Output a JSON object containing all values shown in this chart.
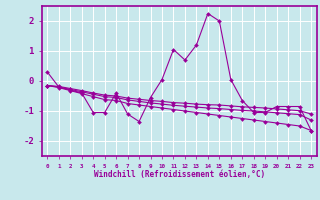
{
  "xlabel": "Windchill (Refroidissement éolien,°C)",
  "x": [
    0,
    1,
    2,
    3,
    4,
    5,
    6,
    7,
    8,
    9,
    10,
    11,
    12,
    13,
    14,
    15,
    16,
    17,
    18,
    19,
    20,
    21,
    22,
    23
  ],
  "line1": [
    0.3,
    -0.2,
    -0.3,
    -0.4,
    -1.05,
    -1.05,
    -0.4,
    -1.1,
    -1.35,
    -0.55,
    0.05,
    1.05,
    0.7,
    1.2,
    2.25,
    2.0,
    0.05,
    -0.65,
    -1.05,
    -1.05,
    -0.85,
    -0.85,
    -0.85,
    -1.65
  ],
  "line2": [
    -0.15,
    -0.22,
    -0.32,
    -0.42,
    -0.52,
    -0.62,
    -0.65,
    -0.75,
    -0.8,
    -0.85,
    -0.9,
    -0.95,
    -1.0,
    -1.05,
    -1.1,
    -1.15,
    -1.2,
    -1.25,
    -1.3,
    -1.35,
    -1.4,
    -1.45,
    -1.5,
    -1.65
  ],
  "line3": [
    -0.15,
    -0.2,
    -0.28,
    -0.36,
    -0.44,
    -0.52,
    -0.55,
    -0.63,
    -0.68,
    -0.73,
    -0.77,
    -0.81,
    -0.84,
    -0.87,
    -0.9,
    -0.92,
    -0.95,
    -0.98,
    -1.0,
    -1.03,
    -1.06,
    -1.09,
    -1.12,
    -1.3
  ],
  "line4": [
    -0.15,
    -0.18,
    -0.25,
    -0.32,
    -0.4,
    -0.47,
    -0.5,
    -0.57,
    -0.61,
    -0.65,
    -0.68,
    -0.72,
    -0.74,
    -0.77,
    -0.79,
    -0.8,
    -0.83,
    -0.86,
    -0.88,
    -0.9,
    -0.93,
    -0.96,
    -0.99,
    -1.1
  ],
  "line_color": "#990099",
  "bg_color": "#c8e8ec",
  "grid_color": "#b0d8dc",
  "grid_white": "#ffffff",
  "ylim": [
    -2.5,
    2.5
  ],
  "xlim": [
    -0.5,
    23.5
  ],
  "yticks": [
    -2,
    -1,
    0,
    1,
    2
  ],
  "xticks": [
    0,
    1,
    2,
    3,
    4,
    5,
    6,
    7,
    8,
    9,
    10,
    11,
    12,
    13,
    14,
    15,
    16,
    17,
    18,
    19,
    20,
    21,
    22,
    23
  ]
}
